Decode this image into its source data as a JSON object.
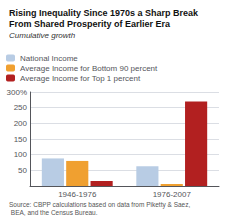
{
  "chart_data": {
    "type": "bar",
    "title": "Rising Inequality Since 1970s a Sharp Break\nFrom Shared Prosperity of Earlier Era",
    "subtitle": "Cumulative growth",
    "source": "Source: CBPP calculations based on data from Piketty & Saez, BEA, and the Census Bureau.",
    "categories": [
      "1946-1976",
      "1976-2007"
    ],
    "series": [
      {
        "name": "National Income",
        "color": "#b8cce4",
        "values": [
          88,
          63
        ]
      },
      {
        "name": "Average Income for Bottom 90 percent",
        "color": "#f0a030",
        "values": [
          80,
          6
        ]
      },
      {
        "name": "Average Income for Top 1 percent",
        "color": "#b22020",
        "values": [
          16,
          270
        ]
      }
    ],
    "ylim": [
      0,
      300
    ],
    "yticks": [
      50,
      100,
      150,
      200,
      250,
      {
        "value": 300,
        "label": "300%"
      }
    ],
    "grid": true,
    "legend": "upper left"
  }
}
